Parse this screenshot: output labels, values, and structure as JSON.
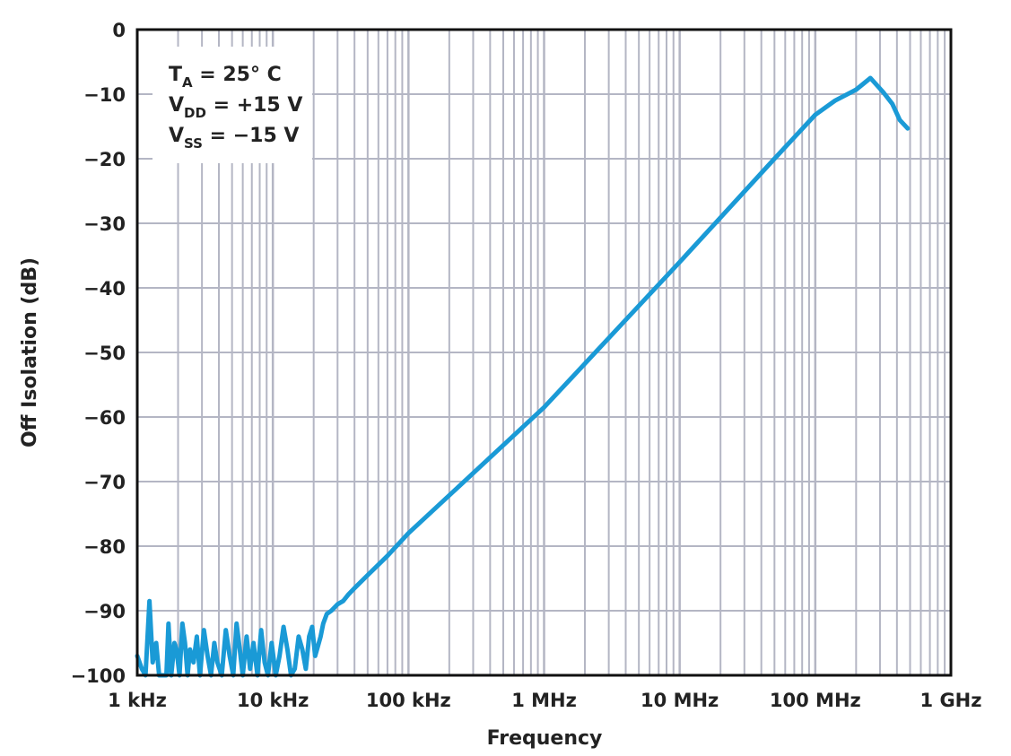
{
  "chart_data": {
    "type": "line",
    "title": "",
    "xlabel": "Frequency",
    "ylabel": "Off Isolation (dB)",
    "xscale": "log",
    "xlim": [
      1000,
      1000000000
    ],
    "ylim": [
      -100,
      0
    ],
    "grid": true,
    "x_tick_labels": [
      "1 kHz",
      "10 kHz",
      "100 kHz",
      "1 MHz",
      "10 MHz",
      "100 MHz",
      "1 GHz"
    ],
    "y_tick_labels": [
      "0",
      "−10",
      "−20",
      "−30",
      "−40",
      "−50",
      "−60",
      "−70",
      "−80",
      "−90",
      "−100"
    ],
    "annotations": [
      {
        "main": "T",
        "sub": "A",
        "rest": " = 25° C"
      },
      {
        "main": "V",
        "sub": "DD",
        "rest": " = +15 V"
      },
      {
        "main": "V",
        "sub": "SS",
        "rest": " = −15 V"
      }
    ],
    "line_color": "#1a9ad6",
    "series": [
      {
        "x": [
          1000,
          1080,
          1150,
          1230,
          1300,
          1380,
          1450,
          1550,
          1640,
          1700,
          1780,
          1880,
          1950,
          2050,
          2150,
          2250,
          2350,
          2450,
          2600,
          2750,
          2900,
          3100,
          3300,
          3500,
          3700,
          3900,
          4200,
          4500,
          4800,
          5100,
          5400,
          5700,
          6000,
          6400,
          6800,
          7200,
          7700,
          8200,
          8700,
          9200,
          9800,
          10500,
          11200,
          12000,
          12800,
          13600,
          14500,
          15500,
          16500,
          17500,
          18500,
          19500,
          20500,
          21500,
          22500,
          23500,
          25000,
          27000,
          30000,
          33000,
          36000,
          40000,
          50000,
          70000,
          100000,
          1000000,
          10000000,
          50000000,
          100000000,
          140000000,
          200000000,
          255000000,
          320000000,
          370000000,
          420000000,
          480000000
        ],
        "y": [
          -97,
          -99,
          -100,
          -88.5,
          -98,
          -95,
          -100,
          -100,
          -100,
          -92,
          -100,
          -95,
          -96,
          -100,
          -92,
          -95,
          -100,
          -96,
          -98,
          -94,
          -100,
          -93,
          -97,
          -100,
          -95,
          -98,
          -100,
          -93,
          -97,
          -100,
          -92,
          -96,
          -100,
          -94,
          -99,
          -95,
          -100,
          -93,
          -98,
          -100,
          -95,
          -100,
          -97,
          -92.5,
          -96,
          -100,
          -99,
          -94,
          -96,
          -99,
          -94,
          -92.5,
          -97,
          -95.5,
          -94,
          -92,
          -90.5,
          -90,
          -89,
          -88.5,
          -87.5,
          -86.5,
          -84.5,
          -81.5,
          -78,
          -58.5,
          -36,
          -20,
          -13.2,
          -11,
          -9.3,
          -7.5,
          -9.8,
          -11.5,
          -14,
          -15.3
        ]
      }
    ]
  }
}
